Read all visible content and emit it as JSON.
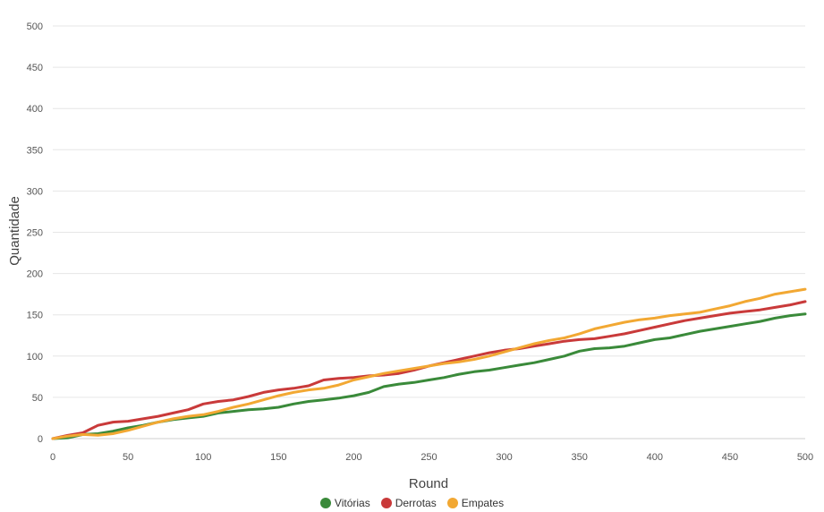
{
  "chart_data": {
    "type": "line",
    "title": "",
    "xlabel": "Round",
    "ylabel": "Quantidade",
    "xlim": [
      0,
      500
    ],
    "ylim": [
      0,
      500
    ],
    "x_ticks": [
      0,
      50,
      100,
      150,
      200,
      250,
      300,
      350,
      400,
      450,
      500
    ],
    "y_ticks": [
      0,
      50,
      100,
      150,
      200,
      250,
      300,
      350,
      400,
      450,
      500
    ],
    "grid": true,
    "legend_position": "bottom-center",
    "series": [
      {
        "name": "Vitórias",
        "color": "#3a8a3a",
        "x": [
          0,
          10,
          20,
          30,
          40,
          50,
          60,
          70,
          80,
          90,
          100,
          110,
          120,
          130,
          140,
          150,
          160,
          170,
          180,
          190,
          200,
          210,
          220,
          230,
          240,
          250,
          260,
          270,
          280,
          290,
          300,
          310,
          320,
          330,
          340,
          350,
          360,
          370,
          380,
          390,
          400,
          410,
          420,
          430,
          440,
          450,
          460,
          470,
          480,
          490,
          500
        ],
        "values": [
          0,
          1,
          5,
          6,
          9,
          13,
          16,
          20,
          23,
          25,
          27,
          31,
          33,
          35,
          36,
          38,
          42,
          45,
          47,
          49,
          52,
          56,
          63,
          66,
          68,
          71,
          74,
          78,
          81,
          83,
          86,
          89,
          92,
          96,
          100,
          106,
          109,
          110,
          112,
          116,
          120,
          122,
          126,
          130,
          133,
          136,
          139,
          142,
          146,
          149,
          151
        ]
      },
      {
        "name": "Derrotas",
        "color": "#c93a3a",
        "x": [
          0,
          10,
          20,
          30,
          40,
          50,
          60,
          70,
          80,
          90,
          100,
          110,
          120,
          130,
          140,
          150,
          160,
          170,
          180,
          190,
          200,
          210,
          220,
          230,
          240,
          250,
          260,
          270,
          280,
          290,
          300,
          310,
          320,
          330,
          340,
          350,
          360,
          370,
          380,
          390,
          400,
          410,
          420,
          430,
          440,
          450,
          460,
          470,
          480,
          490,
          500
        ],
        "values": [
          0,
          4,
          7,
          16,
          20,
          21,
          24,
          27,
          31,
          35,
          42,
          45,
          47,
          51,
          56,
          59,
          61,
          64,
          71,
          73,
          74,
          76,
          77,
          79,
          83,
          88,
          92,
          96,
          100,
          104,
          107,
          109,
          112,
          115,
          118,
          120,
          121,
          124,
          127,
          131,
          135,
          139,
          143,
          146,
          149,
          152,
          154,
          156,
          159,
          162,
          166
        ]
      },
      {
        "name": "Empates",
        "color": "#f2a833",
        "x": [
          0,
          10,
          20,
          30,
          40,
          50,
          60,
          70,
          80,
          90,
          100,
          110,
          120,
          130,
          140,
          150,
          160,
          170,
          180,
          190,
          200,
          210,
          220,
          230,
          240,
          250,
          260,
          270,
          280,
          290,
          300,
          310,
          320,
          330,
          340,
          350,
          360,
          370,
          380,
          390,
          400,
          410,
          420,
          430,
          440,
          450,
          460,
          470,
          480,
          490,
          500
        ],
        "values": [
          0,
          3,
          5,
          4,
          6,
          10,
          15,
          20,
          24,
          27,
          29,
          33,
          38,
          42,
          47,
          52,
          56,
          59,
          61,
          65,
          71,
          75,
          79,
          82,
          85,
          88,
          91,
          93,
          96,
          100,
          105,
          110,
          115,
          119,
          122,
          127,
          133,
          137,
          141,
          144,
          146,
          149,
          151,
          153,
          157,
          161,
          166,
          170,
          175,
          178,
          181
        ]
      }
    ]
  }
}
